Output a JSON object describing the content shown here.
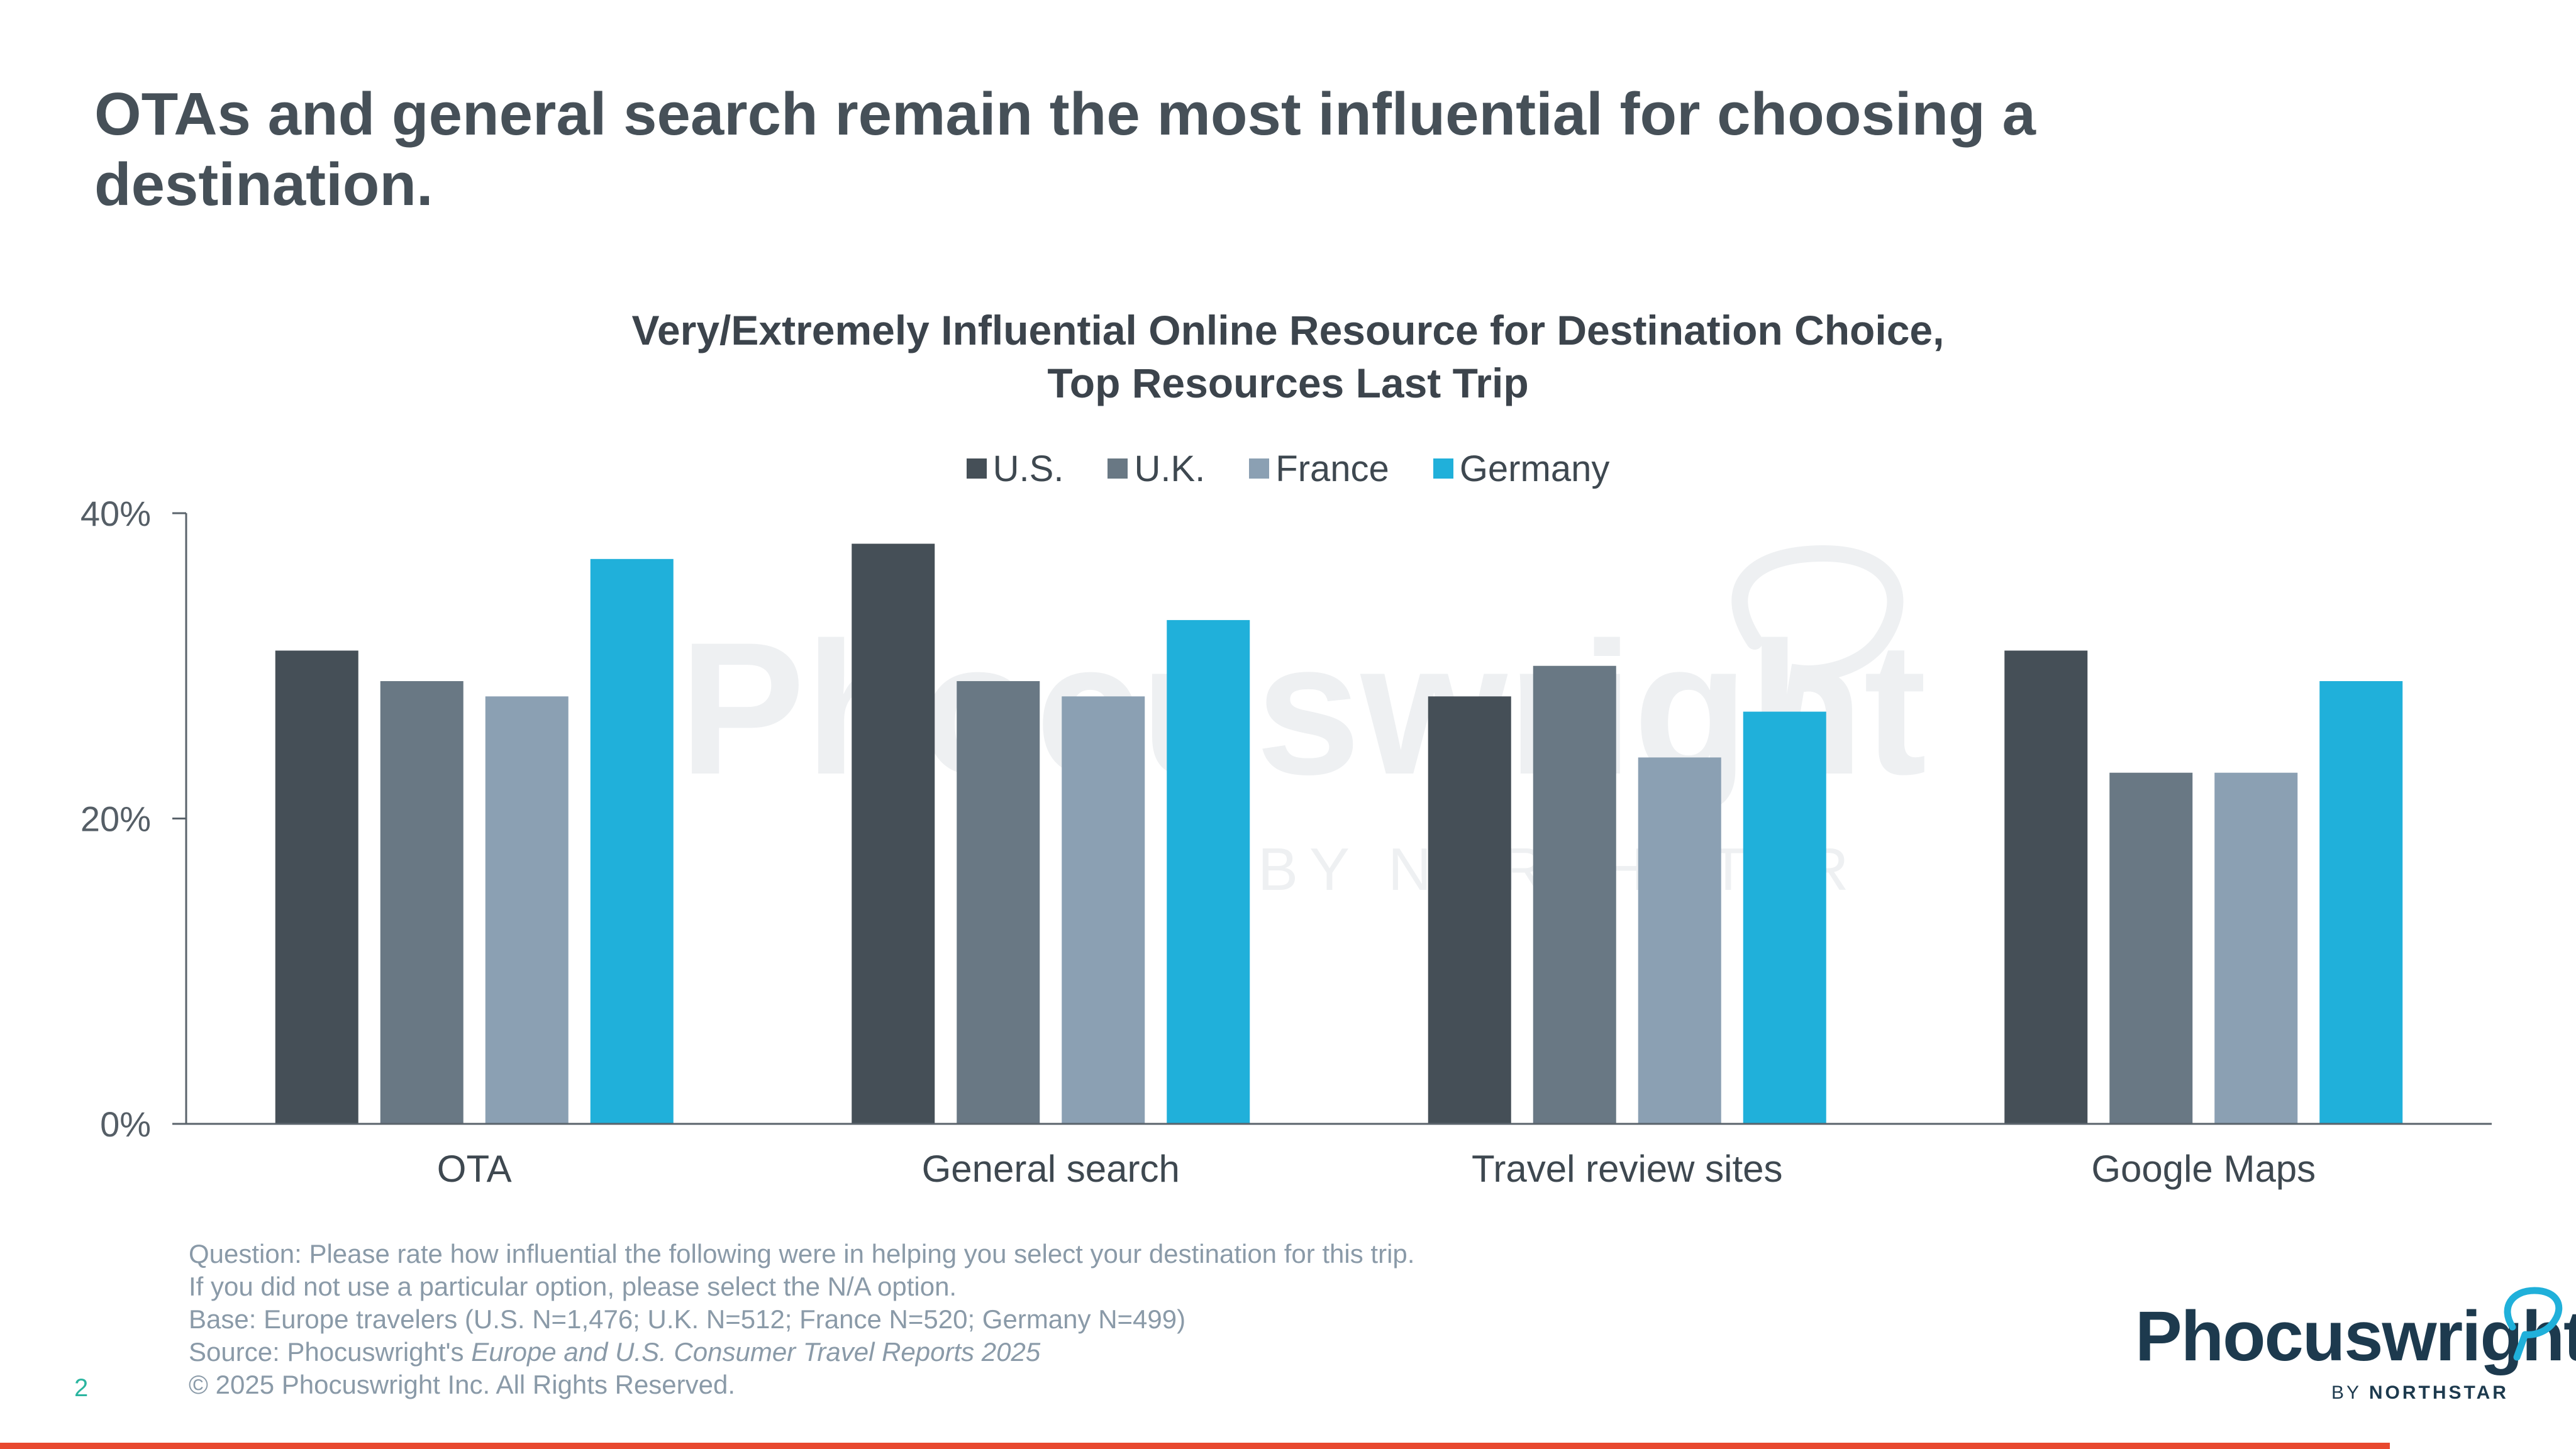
{
  "slide": {
    "title_line1": "OTAs and general search remain the most influential for choosing a",
    "title_line2": "destination.",
    "page_number": "2"
  },
  "chart_data": {
    "type": "bar",
    "title_line1": "Very/Extremely Influential Online Resource for Destination Choice,",
    "title_line2": "Top Resources Last Trip",
    "categories": [
      "OTA",
      "General search",
      "Travel review sites",
      "Google Maps"
    ],
    "series": [
      {
        "name": "U.S.",
        "color": "#454f57",
        "values": [
          31,
          38,
          28,
          31
        ]
      },
      {
        "name": "U.K.",
        "color": "#697884",
        "values": [
          29,
          29,
          30,
          23
        ]
      },
      {
        "name": "France",
        "color": "#8ba0b3",
        "values": [
          28,
          28,
          24,
          23
        ]
      },
      {
        "name": "Germany",
        "color": "#20b0da",
        "values": [
          37,
          33,
          27,
          29
        ]
      }
    ],
    "y_ticks": [
      "0%",
      "20%",
      "40%"
    ],
    "ylim": [
      0,
      40
    ],
    "xlabel": "",
    "ylabel": "",
    "legend": "top-center",
    "grid": false
  },
  "watermark": {
    "brand": "Phocuswright",
    "byline": "BY NORTHSTAR"
  },
  "footnotes": {
    "question_line1": "Question: Please rate how influential the following were in helping you select your destination for this trip.",
    "question_line2": "If you did not use a particular option, please select the N/A option.",
    "base": "Base: Europe travelers (U.S. N=1,476; U.K. N=512; France N=520; Germany N=499)",
    "source_prefix": "Source: Phocuswright's ",
    "source_title": "Europe and U.S. Consumer Travel Reports 2025",
    "copyright": "© 2025 Phocuswright Inc. All Rights Reserved."
  },
  "logo": {
    "brand": "Phocuswright",
    "by": "BY",
    "company": "NORTHSTAR"
  },
  "colors": {
    "accent_bar": "#e8482f",
    "logo_bubble": "#20b0da"
  }
}
